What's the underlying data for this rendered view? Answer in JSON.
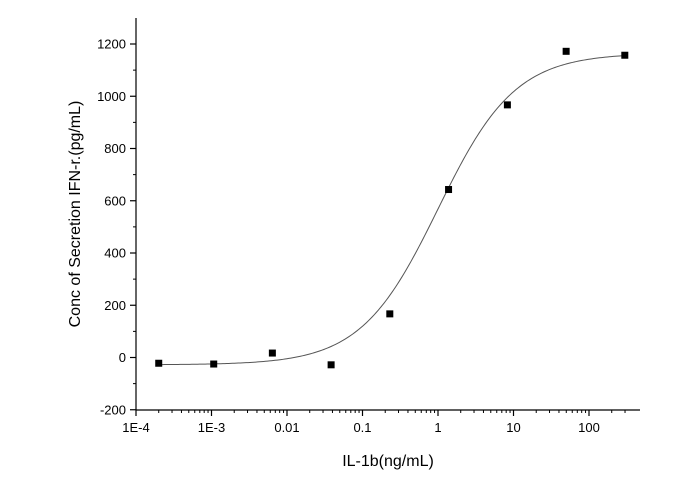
{
  "chart_data": {
    "type": "scatter",
    "xlabel": "IL-1b(ng/mL)",
    "ylabel": "Conc of Secretion IFN-r.(pg/mL)",
    "x_scale": "log",
    "xlim": [
      0.0001,
      300
    ],
    "ylim": [
      -200,
      1300
    ],
    "x_ticks": [
      {
        "value": 0.0001,
        "label": "1E-4"
      },
      {
        "value": 0.001,
        "label": "1E-3"
      },
      {
        "value": 0.01,
        "label": "0.01"
      },
      {
        "value": 0.1,
        "label": "0.1"
      },
      {
        "value": 1,
        "label": "1"
      },
      {
        "value": 10,
        "label": "10"
      },
      {
        "value": 100,
        "label": "100"
      }
    ],
    "y_ticks": [
      {
        "value": -200,
        "label": "-200"
      },
      {
        "value": 0,
        "label": "0"
      },
      {
        "value": 200,
        "label": "200"
      },
      {
        "value": 400,
        "label": "400"
      },
      {
        "value": 600,
        "label": "600"
      },
      {
        "value": 800,
        "label": "800"
      },
      {
        "value": 1000,
        "label": "1000"
      },
      {
        "value": 1200,
        "label": "1200"
      }
    ],
    "points": [
      {
        "x": 0.0002,
        "y": -22
      },
      {
        "x": 0.00107,
        "y": -25
      },
      {
        "x": 0.0064,
        "y": 17
      },
      {
        "x": 0.0384,
        "y": -28
      },
      {
        "x": 0.23,
        "y": 167
      },
      {
        "x": 1.38,
        "y": 643
      },
      {
        "x": 8.3,
        "y": 967
      },
      {
        "x": 49.8,
        "y": 1172
      },
      {
        "x": 298,
        "y": 1157
      }
    ],
    "fit_curve": {
      "model": "4PL",
      "bottom": -28,
      "top": 1165,
      "ec50": 1.0,
      "hill": 0.85
    },
    "grid": false,
    "marker_color": "#000000",
    "curve_color": "#555555"
  }
}
